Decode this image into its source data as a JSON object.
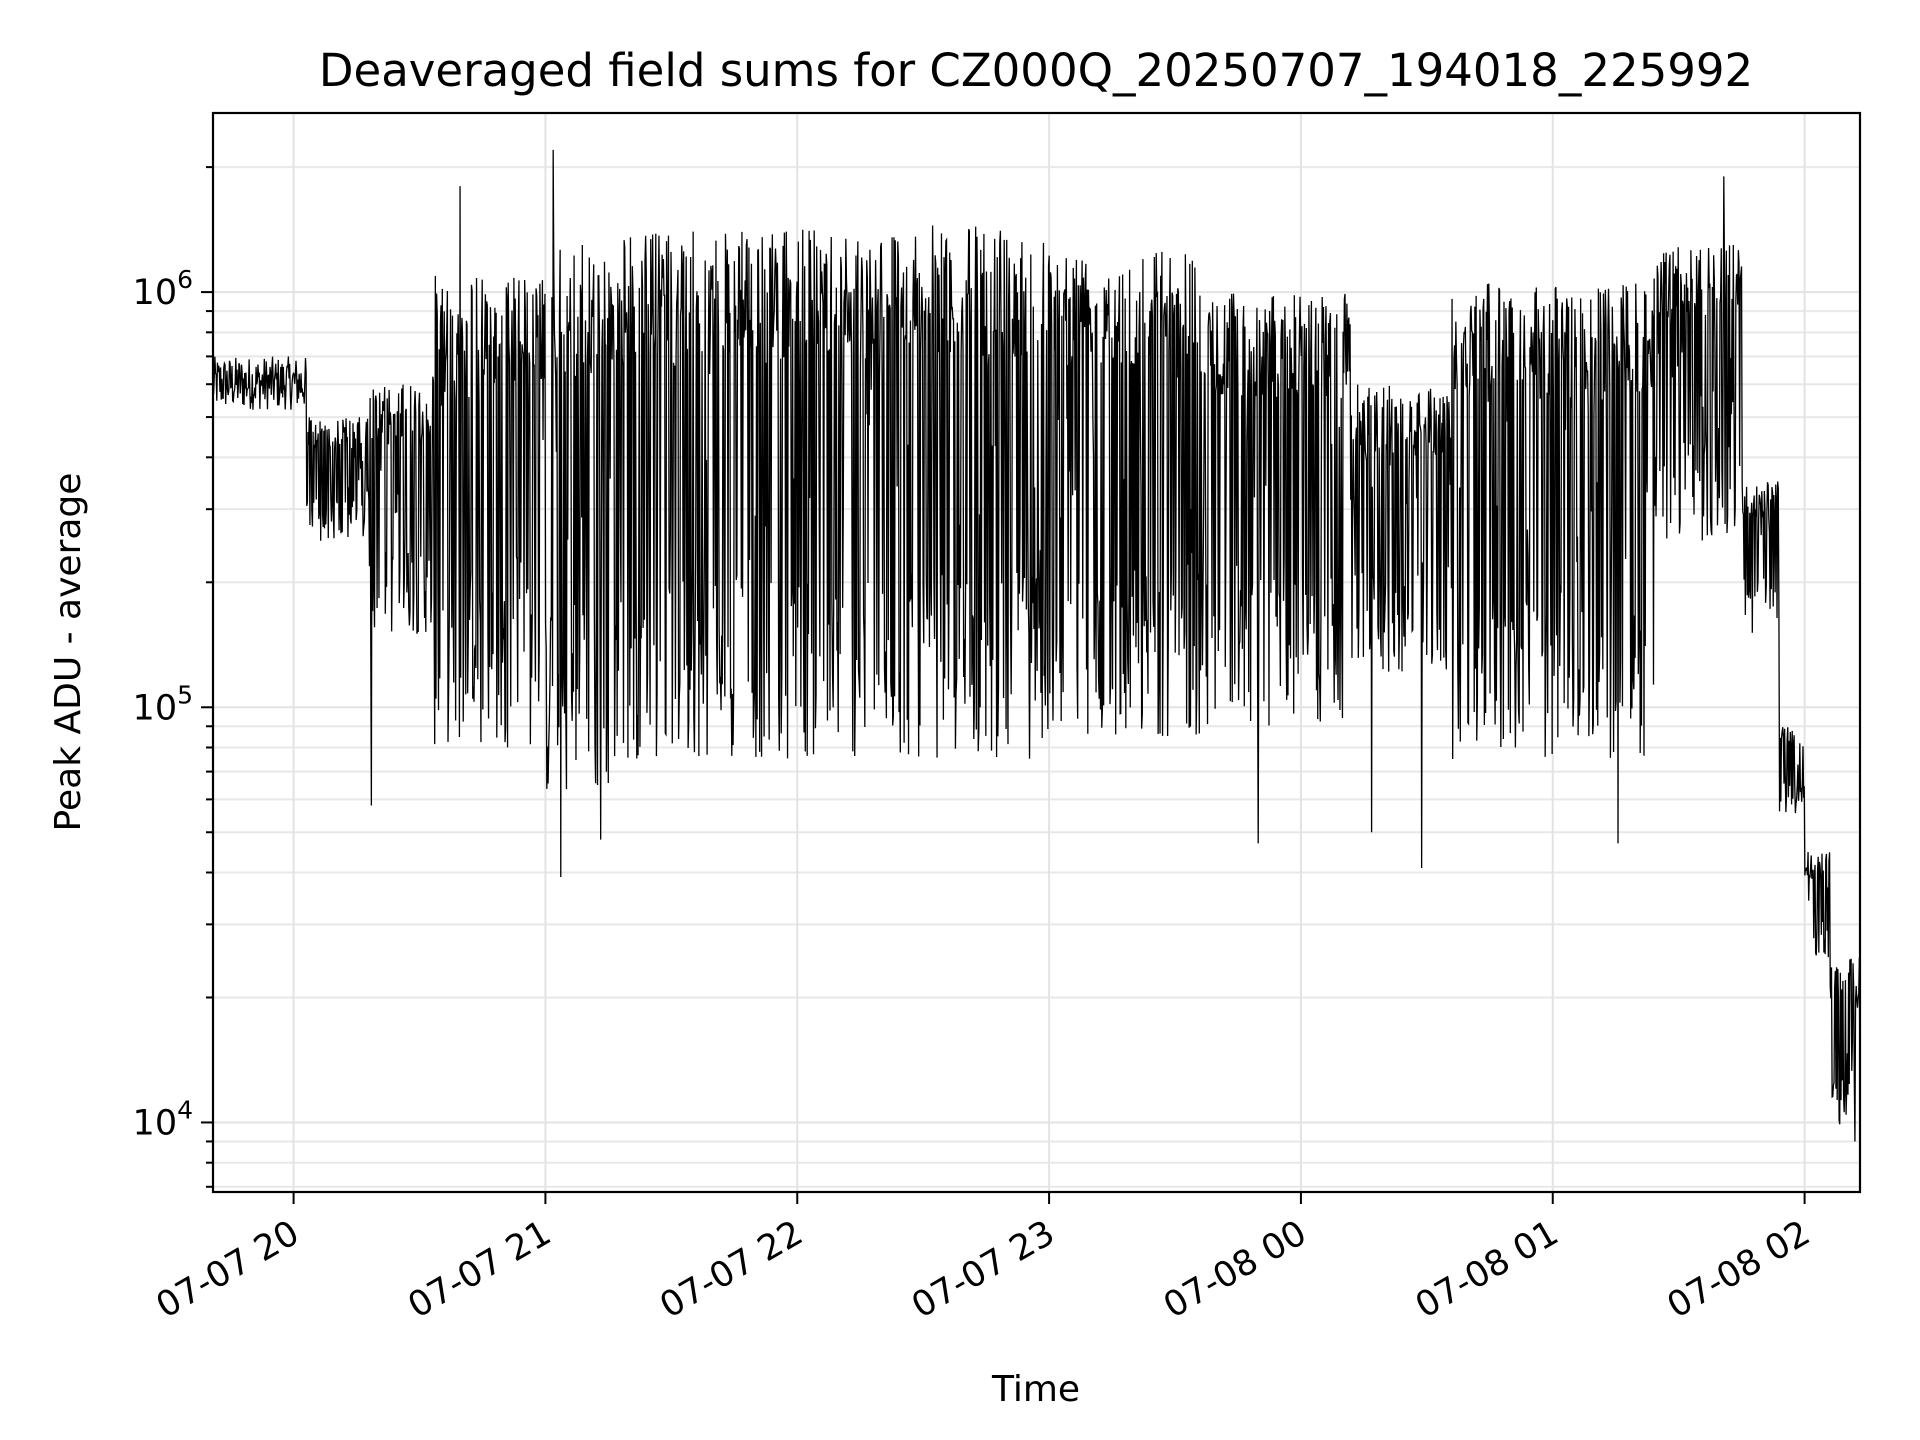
{
  "chart_data": {
    "type": "line",
    "title": "Deaveraged field sums for CZ000Q_20250707_194018_225992",
    "xlabel": "Time",
    "ylabel": "Peak ADU - average",
    "yscale": "log",
    "grid": true,
    "legend": "none",
    "line_color": "#000000",
    "x_range_hours": [
      19.68,
      26.22
    ],
    "y_range": [
      6800,
      2700000
    ],
    "x_ticks": [
      {
        "hours": 20,
        "label": "07-07 20"
      },
      {
        "hours": 21,
        "label": "07-07 21"
      },
      {
        "hours": 22,
        "label": "07-07 22"
      },
      {
        "hours": 23,
        "label": "07-07 23"
      },
      {
        "hours": 24,
        "label": "07-08 00"
      },
      {
        "hours": 25,
        "label": "07-08 01"
      },
      {
        "hours": 26,
        "label": "07-08 02"
      }
    ],
    "y_ticks": [
      {
        "value": 10000,
        "base": "10",
        "exp": "4"
      },
      {
        "value": 100000,
        "base": "10",
        "exp": "5"
      },
      {
        "value": 1000000,
        "base": "10",
        "exp": "6"
      }
    ],
    "segments": [
      {
        "start": 19.68,
        "end": 20.05,
        "top": 700000,
        "bottom": 520000
      },
      {
        "start": 20.05,
        "end": 20.3,
        "top": 500000,
        "bottom": 250000
      },
      {
        "start": 20.3,
        "end": 20.55,
        "top": 600000,
        "bottom": 150000
      },
      {
        "start": 20.55,
        "end": 21.0,
        "top": 1100000,
        "bottom": 80000
      },
      {
        "start": 21.0,
        "end": 21.3,
        "top": 1300000,
        "bottom": 60000
      },
      {
        "start": 21.3,
        "end": 22.0,
        "top": 1400000,
        "bottom": 75000
      },
      {
        "start": 22.0,
        "end": 23.0,
        "top": 1450000,
        "bottom": 75000
      },
      {
        "start": 23.0,
        "end": 23.6,
        "top": 1300000,
        "bottom": 85000
      },
      {
        "start": 23.6,
        "end": 24.2,
        "top": 1000000,
        "bottom": 90000
      },
      {
        "start": 24.2,
        "end": 24.6,
        "top": 600000,
        "bottom": 120000
      },
      {
        "start": 24.6,
        "end": 25.4,
        "top": 1050000,
        "bottom": 75000
      },
      {
        "start": 25.4,
        "end": 25.75,
        "top": 1300000,
        "bottom": 250000
      },
      {
        "start": 25.75,
        "end": 25.9,
        "top": 350000,
        "bottom": 150000
      },
      {
        "start": 25.9,
        "end": 26.0,
        "top": 90000,
        "bottom": 55000
      },
      {
        "start": 26.0,
        "end": 26.1,
        "top": 45000,
        "bottom": 25000
      },
      {
        "start": 26.1,
        "end": 26.22,
        "top": 25000,
        "bottom": 9500
      }
    ],
    "spikes": [
      {
        "hours": 21.03,
        "value": 2200000
      },
      {
        "hours": 20.66,
        "value": 1800000
      },
      {
        "hours": 25.68,
        "value": 1900000
      },
      {
        "hours": 21.06,
        "value": 39000
      },
      {
        "hours": 24.48,
        "value": 41000
      },
      {
        "hours": 20.31,
        "value": 58000
      },
      {
        "hours": 23.83,
        "value": 47000
      },
      {
        "hours": 25.26,
        "value": 47000
      },
      {
        "hours": 24.28,
        "value": 50000
      },
      {
        "hours": 21.22,
        "value": 48000
      },
      {
        "hours": 26.2,
        "value": 9000
      }
    ]
  }
}
